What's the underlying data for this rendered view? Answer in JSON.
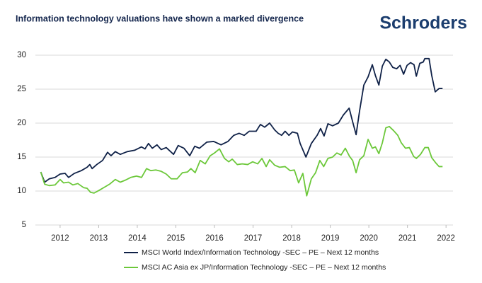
{
  "chart_data": {
    "type": "line",
    "title": "Information technology valuations have shown a marked divergence",
    "brand": "Schroders",
    "xlim": [
      2011.36,
      2022.18
    ],
    "xticks": [
      2012,
      2013,
      2014,
      2015,
      2016,
      2017,
      2018,
      2019,
      2020,
      2021,
      2022
    ],
    "ylim": [
      5,
      30
    ],
    "yticks": [
      5,
      10,
      15,
      20,
      25,
      30
    ],
    "grid": true,
    "legend": "bottom",
    "series": [
      {
        "name": "MSCI World Index/Information Technology -SEC – PE – Next 12 months",
        "color": "#0f2147",
        "x": [
          2011.5,
          2011.6,
          2011.72,
          2011.87,
          2012.0,
          2012.13,
          2012.22,
          2012.37,
          2012.55,
          2012.7,
          2012.77,
          2012.83,
          2012.95,
          2013.1,
          2013.23,
          2013.32,
          2013.43,
          2013.56,
          2013.74,
          2013.93,
          2014.11,
          2014.2,
          2014.29,
          2014.39,
          2014.51,
          2014.62,
          2014.75,
          2014.94,
          2015.06,
          2015.21,
          2015.36,
          2015.49,
          2015.61,
          2015.8,
          2015.98,
          2016.17,
          2016.35,
          2016.5,
          2016.64,
          2016.77,
          2016.9,
          2017.08,
          2017.19,
          2017.3,
          2017.43,
          2017.56,
          2017.65,
          2017.74,
          2017.83,
          2017.93,
          2018.02,
          2018.15,
          2018.22,
          2018.37,
          2018.51,
          2018.66,
          2018.75,
          2018.84,
          2018.94,
          2019.06,
          2019.21,
          2019.34,
          2019.49,
          2019.58,
          2019.67,
          2019.76,
          2019.87,
          2019.98,
          2020.09,
          2020.17,
          2020.26,
          2020.35,
          2020.44,
          2020.53,
          2020.62,
          2020.72,
          2020.81,
          2020.9,
          2020.99,
          2021.08,
          2021.17,
          2021.23,
          2021.32,
          2021.41,
          2021.45,
          2021.56,
          2021.63,
          2021.72,
          2021.82,
          2021.91
        ],
        "values": [
          12.8,
          11.3,
          11.8,
          12.0,
          12.5,
          12.6,
          12.0,
          12.6,
          13.0,
          13.5,
          13.9,
          13.3,
          13.9,
          14.5,
          15.7,
          15.2,
          15.8,
          15.4,
          15.8,
          16.0,
          16.5,
          16.2,
          17.0,
          16.3,
          16.8,
          16.1,
          16.4,
          15.4,
          16.7,
          16.3,
          15.2,
          16.6,
          16.3,
          17.2,
          17.3,
          16.8,
          17.3,
          18.2,
          18.5,
          18.2,
          18.8,
          18.8,
          19.8,
          19.4,
          20.0,
          19.0,
          18.5,
          18.2,
          18.8,
          18.2,
          18.7,
          18.5,
          17.0,
          15.0,
          17.0,
          18.2,
          19.2,
          18.1,
          19.9,
          19.6,
          20.0,
          21.2,
          22.2,
          20.2,
          18.3,
          21.8,
          25.6,
          26.8,
          28.6,
          27.0,
          25.6,
          28.4,
          29.4,
          29.0,
          28.2,
          28.0,
          28.5,
          27.2,
          28.5,
          28.9,
          28.6,
          26.9,
          28.8,
          29.0,
          29.5,
          29.5,
          27.0,
          24.6,
          25.1,
          25.1
        ]
      },
      {
        "name": "MSCI AC Asia ex JP/Information Technology -SEC – PE – Next 12 months",
        "color": "#6cc83a",
        "x": [
          2011.5,
          2011.6,
          2011.72,
          2011.87,
          2012.0,
          2012.09,
          2012.22,
          2012.33,
          2012.46,
          2012.61,
          2012.7,
          2012.79,
          2012.88,
          2013.01,
          2013.16,
          2013.28,
          2013.43,
          2013.56,
          2013.69,
          2013.83,
          2013.98,
          2014.11,
          2014.24,
          2014.35,
          2014.48,
          2014.62,
          2014.75,
          2014.88,
          2015.03,
          2015.17,
          2015.3,
          2015.39,
          2015.5,
          2015.63,
          2015.76,
          2015.89,
          2016.0,
          2016.13,
          2016.26,
          2016.37,
          2016.46,
          2016.59,
          2016.72,
          2016.86,
          2016.99,
          2017.12,
          2017.23,
          2017.34,
          2017.43,
          2017.56,
          2017.69,
          2017.83,
          2017.96,
          2018.07,
          2018.18,
          2018.29,
          2018.39,
          2018.51,
          2018.62,
          2018.73,
          2018.83,
          2018.94,
          2019.06,
          2019.17,
          2019.28,
          2019.39,
          2019.5,
          2019.58,
          2019.67,
          2019.76,
          2019.87,
          2019.98,
          2020.09,
          2020.17,
          2020.26,
          2020.35,
          2020.44,
          2020.53,
          2020.64,
          2020.75,
          2020.84,
          2020.95,
          2021.05,
          2021.16,
          2021.23,
          2021.34,
          2021.45,
          2021.54,
          2021.63,
          2021.74,
          2021.82,
          2021.91
        ],
        "values": [
          12.8,
          11.0,
          10.8,
          10.9,
          11.7,
          11.2,
          11.3,
          10.9,
          11.1,
          10.5,
          10.4,
          9.8,
          9.7,
          10.1,
          10.6,
          11.0,
          11.7,
          11.3,
          11.6,
          12.0,
          12.2,
          12.0,
          13.3,
          13.0,
          13.1,
          12.9,
          12.5,
          11.8,
          11.8,
          12.7,
          12.8,
          13.3,
          12.7,
          14.5,
          14.0,
          15.2,
          15.6,
          16.2,
          14.8,
          14.3,
          14.7,
          13.9,
          14.0,
          13.9,
          14.3,
          14.0,
          14.8,
          13.6,
          14.6,
          13.8,
          13.5,
          13.6,
          13.0,
          13.1,
          11.2,
          12.6,
          9.3,
          11.8,
          12.7,
          14.5,
          13.6,
          14.8,
          15.0,
          15.6,
          15.3,
          16.3,
          15.1,
          14.5,
          12.7,
          14.6,
          15.2,
          17.6,
          16.3,
          16.5,
          15.5,
          17.1,
          19.3,
          19.5,
          18.9,
          18.2,
          17.1,
          16.3,
          16.4,
          15.1,
          14.8,
          15.4,
          16.4,
          16.4,
          14.9,
          14.1,
          13.6,
          13.6
        ]
      }
    ]
  }
}
